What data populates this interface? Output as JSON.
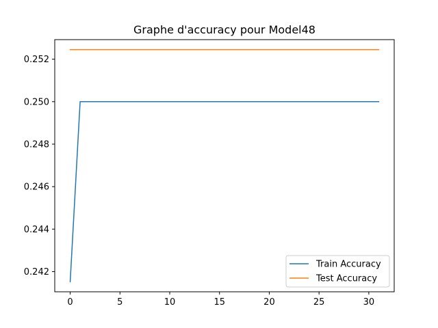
{
  "chart_data": {
    "type": "line",
    "title": "Graphe d'accuracy pour Model48",
    "xlabel": "",
    "ylabel": "",
    "xlim": [
      -1.55,
      32.55
    ],
    "ylim": [
      0.24105,
      0.25292
    ],
    "xticks": [
      0,
      5,
      10,
      15,
      20,
      25,
      30
    ],
    "yticks": [
      0.242,
      0.244,
      0.246,
      0.248,
      0.25,
      0.252
    ],
    "ytick_labels": [
      "0.242",
      "0.244",
      "0.246",
      "0.248",
      "0.250",
      "0.252"
    ],
    "grid": false,
    "legend_position": "lower right",
    "series": [
      {
        "name": "Train Accuracy",
        "color": "#1f77b4",
        "x": [
          0,
          1,
          2,
          3,
          4,
          5,
          6,
          7,
          8,
          9,
          10,
          11,
          12,
          13,
          14,
          15,
          16,
          17,
          18,
          19,
          20,
          21,
          22,
          23,
          24,
          25,
          26,
          27,
          28,
          29,
          30,
          31
        ],
        "values": [
          0.24152,
          0.25,
          0.25,
          0.25,
          0.25,
          0.25,
          0.25,
          0.25,
          0.25,
          0.25,
          0.25,
          0.25,
          0.25,
          0.25,
          0.25,
          0.25,
          0.25,
          0.25,
          0.25,
          0.25,
          0.25,
          0.25,
          0.25,
          0.25,
          0.25,
          0.25,
          0.25,
          0.25,
          0.25,
          0.25,
          0.25,
          0.25
        ]
      },
      {
        "name": "Test Accuracy",
        "color": "#ff7f0e",
        "x": [
          0,
          1,
          2,
          3,
          4,
          5,
          6,
          7,
          8,
          9,
          10,
          11,
          12,
          13,
          14,
          15,
          16,
          17,
          18,
          19,
          20,
          21,
          22,
          23,
          24,
          25,
          26,
          27,
          28,
          29,
          30,
          31
        ],
        "values": [
          0.25245,
          0.25245,
          0.25245,
          0.25245,
          0.25245,
          0.25245,
          0.25245,
          0.25245,
          0.25245,
          0.25245,
          0.25245,
          0.25245,
          0.25245,
          0.25245,
          0.25245,
          0.25245,
          0.25245,
          0.25245,
          0.25245,
          0.25245,
          0.25245,
          0.25245,
          0.25245,
          0.25245,
          0.25245,
          0.25245,
          0.25245,
          0.25245,
          0.25245,
          0.25245,
          0.25245,
          0.25245
        ]
      }
    ]
  }
}
